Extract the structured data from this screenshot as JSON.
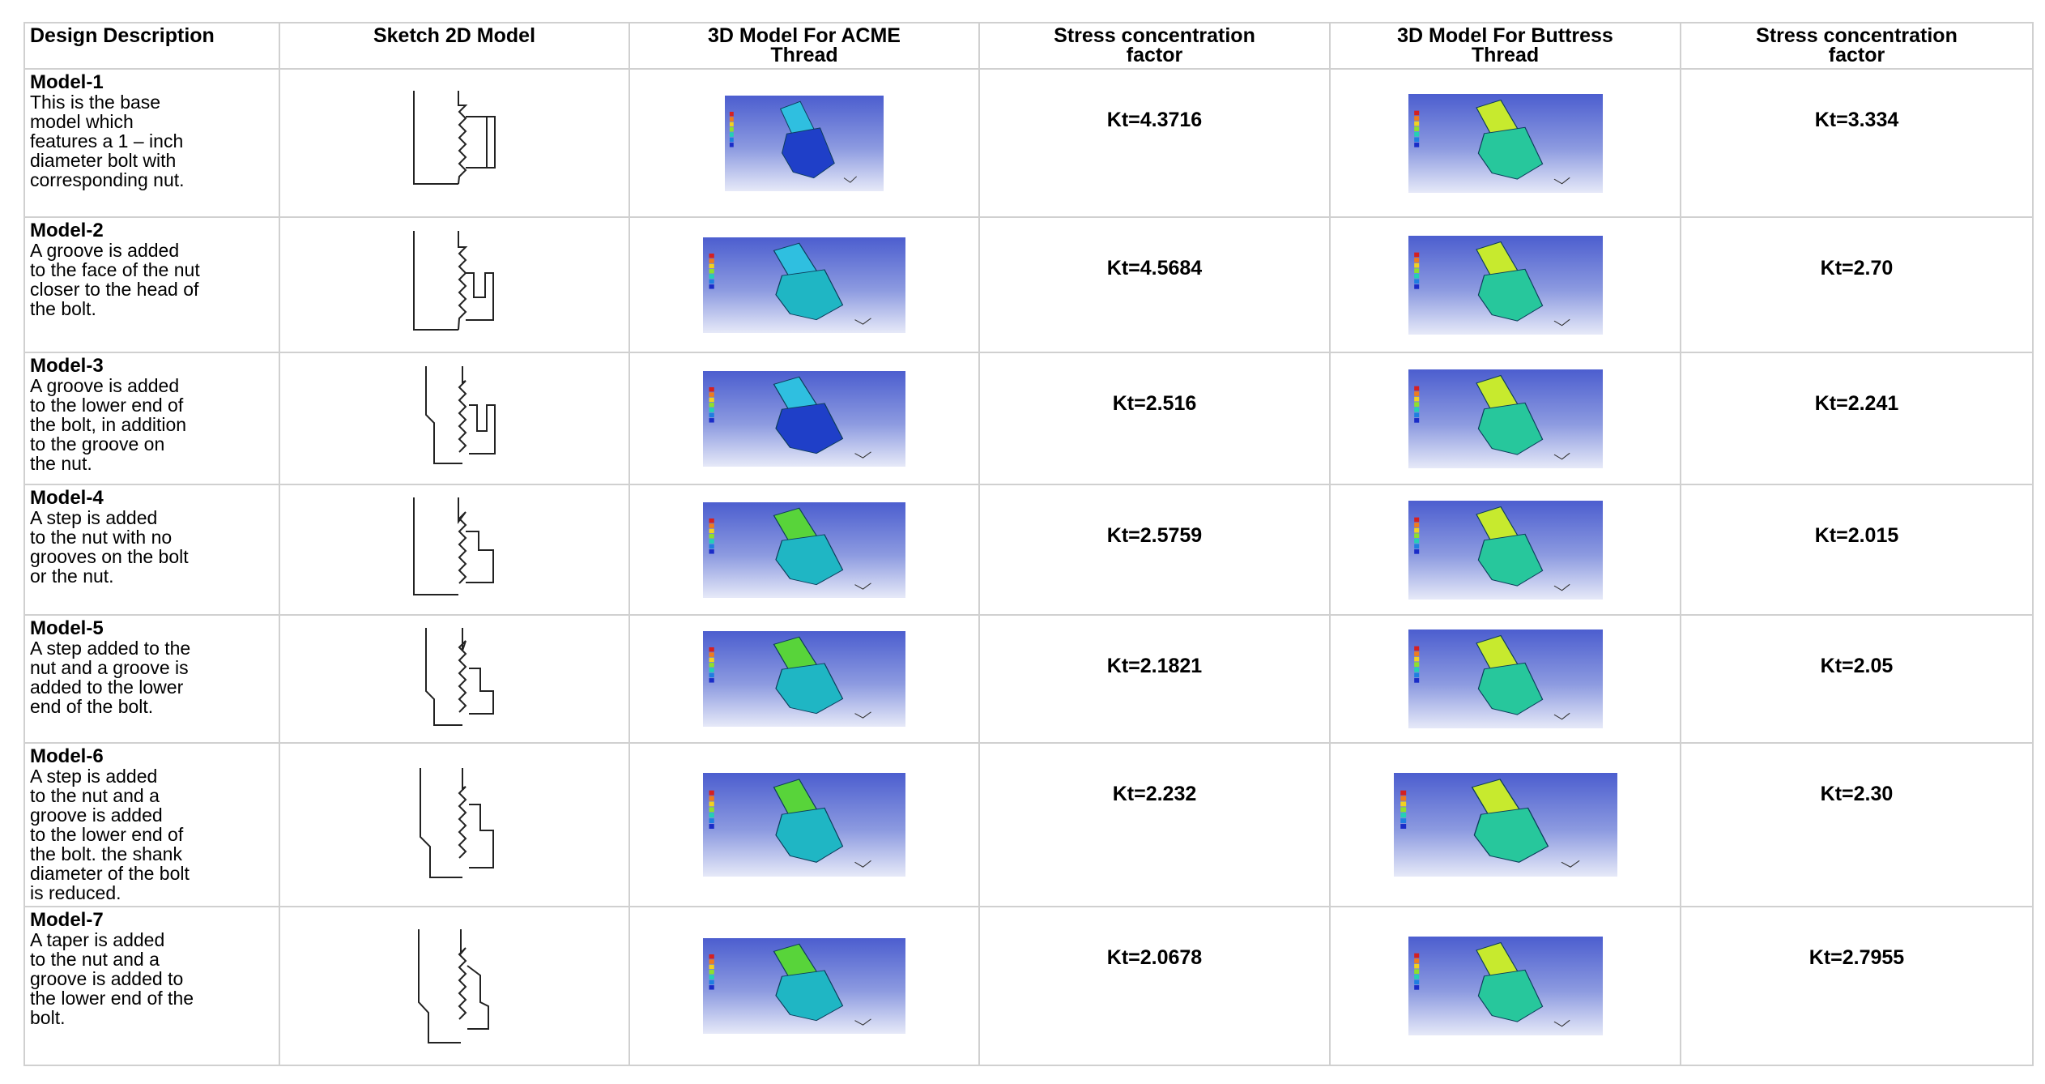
{
  "headers": [
    "Design Description",
    "Sketch 2D Model",
    "3D Model For ACME\nThread",
    "Stress concentration\nfactor",
    "3D Model For Buttress\nThread",
    "Stress concentration\nfactor"
  ],
  "rows": [
    {
      "title": "Model-1",
      "text": "This is the base\nmodel which\nfeatures a 1 – inch\ndiameter bolt with\ncorresponding nut.",
      "acme_kt": "Kt=4.3716",
      "buttress_kt": "Kt=3.334"
    },
    {
      "title": "Model-2",
      "text": "A groove is added\nto the face of the nut\ncloser to the head of\nthe bolt.",
      "acme_kt": "Kt=4.5684",
      "buttress_kt": "Kt=2.70"
    },
    {
      "title": "Model-3",
      "text": "A groove is added\nto the lower end of\nthe bolt, in addition\nto the groove on\nthe nut.",
      "acme_kt": "Kt=2.516",
      "buttress_kt": "Kt=2.241"
    },
    {
      "title": "Model-4",
      "text": "A step is added\nto the nut with no\ngrooves on the bolt\nor the nut.",
      "acme_kt": "Kt=2.5759",
      "buttress_kt": "Kt=2.015"
    },
    {
      "title": "Model-5",
      "text": "A step added to the\nnut and a groove is\nadded to the lower\nend of the bolt.",
      "acme_kt": "Kt=2.1821",
      "buttress_kt": "Kt=2.05"
    },
    {
      "title": "Model-6",
      "text": "A step is added\nto the nut and a\ngroove is added\nto the lower end of\nthe bolt. the shank\ndiameter of the bolt\nis reduced.",
      "acme_kt": "Kt=2.232",
      "buttress_kt": "Kt=2.30"
    },
    {
      "title": "Model-7",
      "text": "A taper  is added\nto the nut and a\ngroove is added to\nthe lower end of the\nbolt.",
      "acme_kt": "Kt=2.0678",
      "buttress_kt": "Kt=2.7955"
    }
  ],
  "icons": {
    "sketch": "bolt-nut-sketch-icon",
    "acme_render": "acme-thread-fea-render",
    "buttress_render": "buttress-thread-fea-render"
  },
  "colors": {
    "render_background_top": "#4c5ecf",
    "render_background_bottom": "#e6e9f8",
    "acme_model": "#1fb6c4",
    "buttress_model": "#27c79c",
    "grid_line": "#d0d0d0"
  }
}
